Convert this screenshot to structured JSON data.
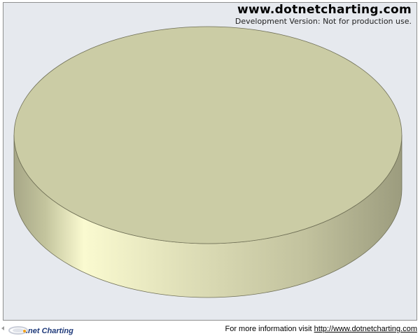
{
  "watermark": {
    "site": "www.dotnetcharting.com",
    "notice": "Development Version: Not for production use."
  },
  "footer": {
    "logo_text": ".net Charting",
    "info_prefix": "For more information visit ",
    "link_text": "http://www.dotnetcharting.com"
  },
  "colors": {
    "background": "#e6e9ee",
    "plot_border": "#909090",
    "pie_top": "#cbcca5",
    "pie_edge_light": "#fafad0",
    "pie_edge_dark": "#9f9f81",
    "pie_outline": "#6e6e55"
  },
  "chart_data": {
    "type": "pie",
    "style": "3d",
    "title": "",
    "series": [
      {
        "name": "",
        "values": [
          100
        ]
      }
    ],
    "categories": [
      ""
    ],
    "legend": "none"
  }
}
